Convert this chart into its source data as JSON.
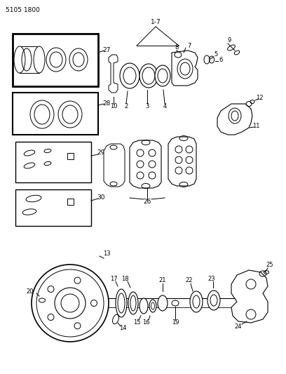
{
  "background_color": "#ffffff",
  "line_color": "#000000",
  "text_color": "#000000",
  "fig_width": 4.08,
  "fig_height": 5.33,
  "dpi": 100,
  "header": "5105 1800"
}
